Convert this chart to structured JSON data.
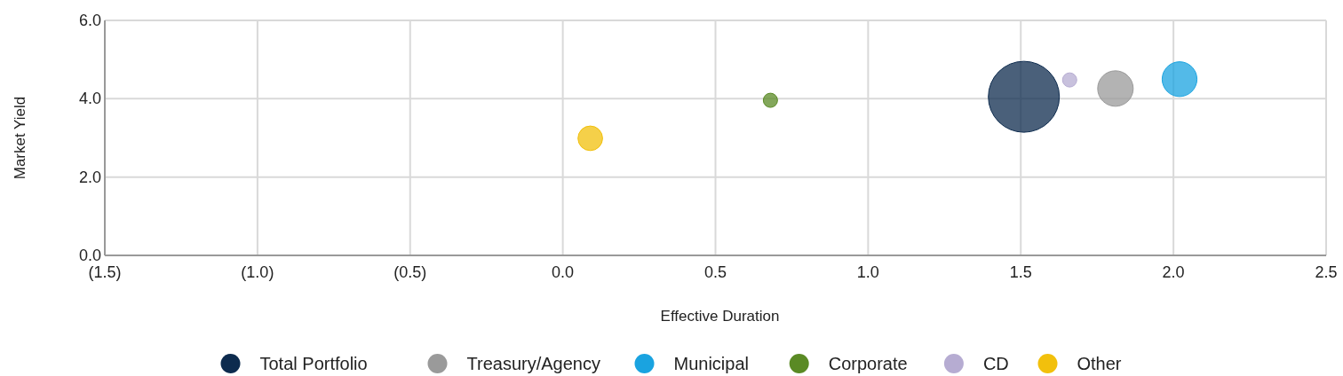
{
  "chart_data": {
    "type": "bubble",
    "xlabel": "Effective Duration",
    "ylabel": "Market Yield",
    "xlim": [
      -1.5,
      2.5
    ],
    "xticks": [
      {
        "value": -1.5,
        "label": "(1.5)"
      },
      {
        "value": -1,
        "label": "(1.0)"
      },
      {
        "value": -0.5,
        "label": "(0.5)"
      },
      {
        "value": 0,
        "label": "0.0"
      },
      {
        "value": 0.5,
        "label": "0.5"
      },
      {
        "value": 1,
        "label": "1.0"
      },
      {
        "value": 1.5,
        "label": "1.5"
      },
      {
        "value": 2,
        "label": "2.0"
      },
      {
        "value": 2.5,
        "label": "2.5"
      }
    ],
    "ylim": [
      0,
      6
    ],
    "yticks": [
      {
        "value": 0,
        "label": "0.0"
      },
      {
        "value": 2,
        "label": "2.0"
      },
      {
        "value": 4,
        "label": "4.0"
      },
      {
        "value": 6,
        "label": "6.0"
      }
    ],
    "grid": true,
    "legend": "bottom",
    "marker": "circle",
    "series": [
      {
        "name": "Total Portfolio",
        "color": "#0d2b4e",
        "x": [
          1.51
        ],
        "values": [
          4.05
        ],
        "sizes": [
          1
        ]
      },
      {
        "name": "Treasury/Agency",
        "color": "#9a9a9a",
        "x": [
          1.81
        ],
        "values": [
          4.26
        ],
        "sizes": [
          0.25
        ]
      },
      {
        "name": "Municipal",
        "color": "#1aa3e0",
        "x": [
          2.02
        ],
        "values": [
          4.5
        ],
        "sizes": [
          0.24
        ]
      },
      {
        "name": "Corporate",
        "color": "#5a8a24",
        "x": [
          0.68
        ],
        "values": [
          3.96
        ],
        "sizes": [
          0.04
        ]
      },
      {
        "name": "CD",
        "color": "#b6acd2",
        "x": [
          1.66
        ],
        "values": [
          4.48
        ],
        "sizes": [
          0.04
        ]
      },
      {
        "name": "Other",
        "color": "#f2c00c",
        "x": [
          0.09
        ],
        "values": [
          2.99
        ],
        "sizes": [
          0.12
        ]
      }
    ]
  }
}
